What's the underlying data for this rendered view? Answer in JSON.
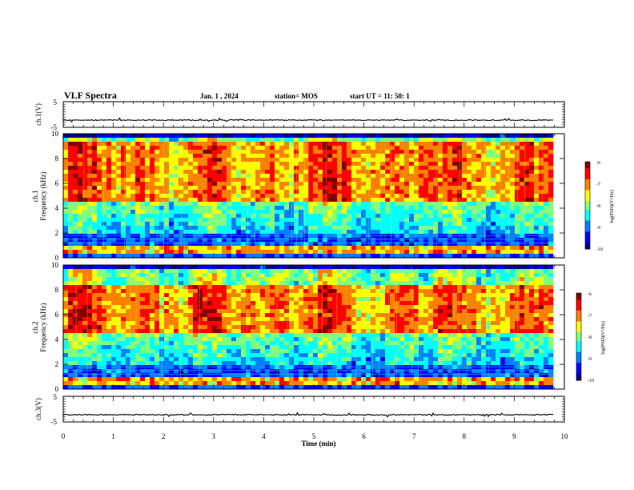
{
  "header": {
    "title": "VLF Spectra",
    "date": "Jan.  1 , 2024",
    "station": "station= MOS",
    "start": "start  UT =   11: 50: 1"
  },
  "colors": {
    "colormap": [
      "#00008f",
      "#0000ff",
      "#0080ff",
      "#00ffff",
      "#80ff80",
      "#ffff00",
      "#ff8000",
      "#ff0000",
      "#800000"
    ]
  },
  "chart_data": [
    {
      "type": "line",
      "panel": "ch1-voltage",
      "ylabel": "ch.1(V)",
      "ylim": [
        -5,
        5
      ],
      "yticks": [
        "5",
        "-5"
      ],
      "series": [
        {
          "values_note": "",
          "x_range": [
            0,
            9.8
          ],
          "approx_level": -2.2
        }
      ]
    },
    {
      "type": "heatmap",
      "panel": "ch1-spectrogram",
      "ylabel_line1": "ch.1",
      "ylabel_line2": "Frequency (kHz)",
      "ylim": [
        0,
        10
      ],
      "yticks": [
        "0",
        "2",
        "4",
        "6",
        "8",
        "10"
      ],
      "x_range": [
        0,
        9.8
      ],
      "colorbar": {
        "label": "log(PSD)(V²/Hz)",
        "range": [
          -10,
          -6
        ],
        "ticks": [
          "-6",
          "-7",
          "-8",
          "-9",
          "-10"
        ]
      },
      "bands": {
        "intense_kHz": [
          4.5,
          9.3
        ],
        "noise_floor_kHz": [
          1.0,
          2.0
        ],
        "lower_band_kHz": [
          0.2,
          0.9
        ]
      }
    },
    {
      "type": "heatmap",
      "panel": "ch2-spectrogram",
      "ylabel_line1": "ch.2",
      "ylabel_line2": "Frequency (kHz)",
      "ylim": [
        0,
        10
      ],
      "yticks": [
        "0",
        "2",
        "4",
        "6",
        "8",
        "10"
      ],
      "x_range": [
        0,
        9.8
      ],
      "colorbar": {
        "label": "log(PSD)(V²/Hz)",
        "range": [
          -10,
          -6
        ],
        "ticks": [
          "-6",
          "-7",
          "-8",
          "-9",
          "-10"
        ]
      },
      "bands": {
        "intense_kHz": [
          4.5,
          8.5
        ],
        "noise_floor_kHz": [
          1.0,
          2.0
        ],
        "lower_band_kHz": [
          0.2,
          0.9
        ]
      }
    },
    {
      "type": "line",
      "panel": "ch3-voltage",
      "ylabel": "ch.3(V)",
      "ylim": [
        -5,
        5
      ],
      "yticks": [
        "5",
        "-5"
      ],
      "series": [
        {
          "values_note": "",
          "x_range": [
            0,
            9.8
          ],
          "approx_level": -2.2
        }
      ]
    }
  ],
  "xaxis": {
    "label": "Time (min)",
    "range": [
      0,
      10
    ],
    "ticks": [
      "0",
      "1",
      "2",
      "3",
      "4",
      "5",
      "6",
      "7",
      "8",
      "9",
      "10"
    ]
  }
}
